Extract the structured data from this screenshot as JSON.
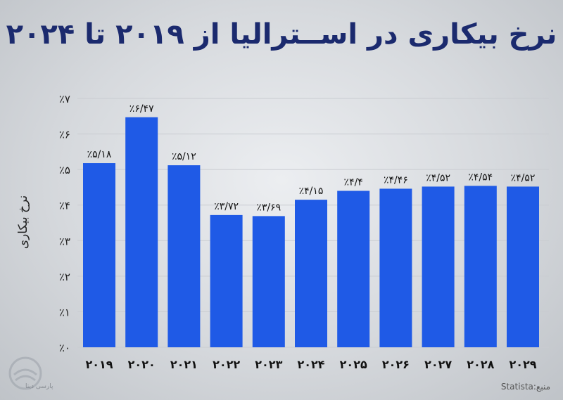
{
  "chart_data": {
    "type": "bar",
    "title": "نرخ بیکاری در اســترالیا از ۲۰۱۹ تا ۲۰۲۴",
    "ylabel": "نرخ بیکاری",
    "xlabel": "",
    "ylim": [
      0,
      7
    ],
    "yticks": [
      "٪۰",
      "٪۱",
      "٪۲",
      "٪۳",
      "٪۴",
      "٪۵",
      "٪۶",
      "٪۷"
    ],
    "categories": [
      "۲۰۱۹",
      "۲۰۲۰",
      "۲۰۲۱",
      "۲۰۲۲",
      "۲۰۲۳",
      "۲۰۲۴",
      "۲۰۲۵",
      "۲۰۲۶",
      "۲۰۲۷",
      "۲۰۲۸",
      "۲۰۲۹"
    ],
    "values": [
      5.18,
      6.47,
      5.12,
      3.72,
      3.69,
      4.15,
      4.4,
      4.46,
      4.52,
      4.54,
      4.52
    ],
    "data_labels": [
      "٪۵/۱۸",
      "٪۶/۴۷",
      "٪۵/۱۲",
      "٪۳/۷۲",
      "٪۳/۶۹",
      "٪۴/۱۵",
      "٪۴/۴",
      "٪۴/۴۶",
      "٪۴/۵۲",
      "٪۴/۵۴",
      "٪۴/۵۲"
    ],
    "grid": true,
    "bar_color": "#1f5ae6"
  },
  "source": "منبع:Statista",
  "watermark": "پارسی دیتا"
}
